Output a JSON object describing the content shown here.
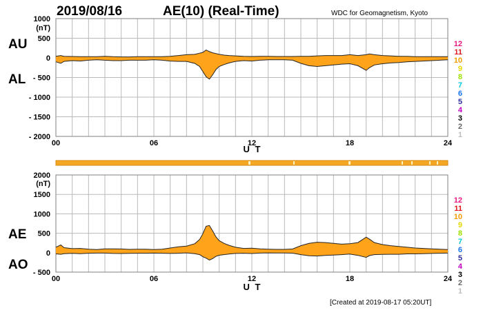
{
  "header": {
    "date": "2019/08/16",
    "title": "AE(10) (Real-Time)",
    "source": "WDC for Geomagnetism, Kyoto"
  },
  "footer": {
    "created": "[Created at 2019-08-17 05:20UT]"
  },
  "legend": {
    "items": [
      {
        "label": "12",
        "color": "#e8177d"
      },
      {
        "label": "11",
        "color": "#e0161a"
      },
      {
        "label": "10",
        "color": "#f39c00"
      },
      {
        "label": "9",
        "color": "#e6d800"
      },
      {
        "label": "8",
        "color": "#9ee000"
      },
      {
        "label": "7",
        "color": "#00c8d8"
      },
      {
        "label": "6",
        "color": "#1a73e8"
      },
      {
        "label": "5",
        "color": "#2c2c9c"
      },
      {
        "label": "4",
        "color": "#c000c0"
      },
      {
        "label": "3",
        "color": "#000000"
      },
      {
        "label": "2",
        "color": "#666666"
      },
      {
        "label": "1",
        "color": "#bdbdbd"
      }
    ]
  },
  "colors": {
    "fill": "#ffa31a",
    "outline": "#222222",
    "bar": "#f5a623",
    "bar_highlight": "#fff2c0"
  },
  "chart_data": [
    {
      "type": "area",
      "title": "AU / AL",
      "series_labels": {
        "upper": "AU",
        "lower": "AL"
      },
      "ylabel": "(nT)",
      "xlabel": "U T",
      "xlim": [
        0,
        24
      ],
      "ylim": [
        -2000,
        1000
      ],
      "yticks": [
        "1000",
        "500",
        "0",
        "- 500",
        "- 1000",
        "- 1500",
        "- 2000"
      ],
      "ytick_values": [
        1000,
        500,
        0,
        -500,
        -1000,
        -1500,
        -2000
      ],
      "xticks": [
        "00",
        "06",
        "12",
        "18",
        "24"
      ],
      "xtick_values": [
        0,
        6,
        12,
        18,
        24
      ],
      "x": [
        0,
        0.3,
        0.5,
        1,
        1.5,
        2,
        2.5,
        3,
        3.5,
        4,
        4.5,
        5,
        5.5,
        6,
        6.5,
        7,
        7.5,
        8,
        8.5,
        8.8,
        9,
        9.2,
        9.4,
        9.6,
        9.8,
        10,
        10.3,
        10.6,
        11,
        11.5,
        12,
        12.5,
        13,
        13.5,
        14,
        14.5,
        15,
        15.5,
        16,
        16.5,
        17,
        17.5,
        18,
        18.5,
        19,
        19.2,
        19.5,
        20,
        20.5,
        21,
        21.5,
        22,
        22.5,
        23,
        23.5,
        24
      ],
      "series": [
        {
          "name": "AU",
          "values": [
            40,
            60,
            40,
            35,
            30,
            30,
            30,
            40,
            30,
            25,
            25,
            30,
            30,
            30,
            30,
            40,
            60,
            80,
            90,
            120,
            140,
            200,
            160,
            130,
            110,
            90,
            70,
            60,
            50,
            40,
            35,
            40,
            40,
            35,
            35,
            35,
            40,
            40,
            50,
            60,
            60,
            60,
            80,
            60,
            80,
            100,
            80,
            60,
            50,
            40,
            40,
            30,
            30,
            30,
            30,
            30
          ]
        },
        {
          "name": "AL",
          "values": [
            -100,
            -140,
            -90,
            -70,
            -80,
            -60,
            -50,
            -60,
            -70,
            -70,
            -60,
            -60,
            -60,
            -50,
            -60,
            -80,
            -90,
            -90,
            -140,
            -220,
            -350,
            -480,
            -540,
            -430,
            -300,
            -220,
            -170,
            -130,
            -90,
            -70,
            -80,
            -60,
            -50,
            -50,
            -50,
            -60,
            -140,
            -200,
            -220,
            -200,
            -180,
            -160,
            -150,
            -200,
            -320,
            -250,
            -180,
            -150,
            -130,
            -120,
            -100,
            -90,
            -80,
            -70,
            -60,
            -50
          ]
        }
      ]
    },
    {
      "type": "area",
      "title": "AE / AO",
      "series_labels": {
        "upper": "AE",
        "lower": "AO"
      },
      "ylabel": "(nT)",
      "xlabel": "U T",
      "xlim": [
        0,
        24
      ],
      "ylim": [
        -500,
        2000
      ],
      "yticks": [
        "2000",
        "1500",
        "1000",
        "500",
        "0",
        "- 500"
      ],
      "ytick_values": [
        2000,
        1500,
        1000,
        500,
        0,
        -500
      ],
      "xticks": [
        "00",
        "06",
        "12",
        "18",
        "24"
      ],
      "xtick_values": [
        0,
        6,
        12,
        18,
        24
      ],
      "x": [
        0,
        0.3,
        0.5,
        1,
        1.5,
        2,
        2.5,
        3,
        3.5,
        4,
        4.5,
        5,
        5.5,
        6,
        6.5,
        7,
        7.5,
        8,
        8.5,
        8.8,
        9,
        9.2,
        9.4,
        9.6,
        9.8,
        10,
        10.3,
        10.6,
        11,
        11.5,
        12,
        12.5,
        13,
        13.5,
        14,
        14.5,
        15,
        15.5,
        16,
        16.5,
        17,
        17.5,
        18,
        18.5,
        19,
        19.2,
        19.5,
        20,
        20.5,
        21,
        21.5,
        22,
        22.5,
        23,
        23.5,
        24
      ],
      "series": [
        {
          "name": "AE",
          "values": [
            140,
            200,
            130,
            105,
            110,
            90,
            80,
            100,
            100,
            95,
            85,
            90,
            90,
            80,
            90,
            120,
            150,
            170,
            230,
            340,
            490,
            680,
            700,
            560,
            410,
            310,
            240,
            190,
            140,
            110,
            115,
            100,
            90,
            85,
            85,
            95,
            180,
            240,
            270,
            260,
            240,
            220,
            230,
            260,
            400,
            350,
            260,
            210,
            180,
            160,
            140,
            120,
            110,
            100,
            90,
            80
          ]
        },
        {
          "name": "AO",
          "values": [
            -30,
            -40,
            -25,
            -18,
            -25,
            -15,
            -10,
            -10,
            -20,
            -22,
            -18,
            -15,
            -15,
            -10,
            -15,
            -20,
            -15,
            -5,
            -25,
            -50,
            -105,
            -140,
            -190,
            -150,
            -95,
            -65,
            -50,
            -35,
            -20,
            -15,
            -22,
            -10,
            -5,
            -7,
            -7,
            -12,
            -50,
            -80,
            -85,
            -70,
            -60,
            -50,
            -35,
            -70,
            -120,
            -75,
            -50,
            -45,
            -40,
            -40,
            -30,
            -30,
            -25,
            -20,
            -15,
            -10
          ]
        }
      ]
    }
  ]
}
